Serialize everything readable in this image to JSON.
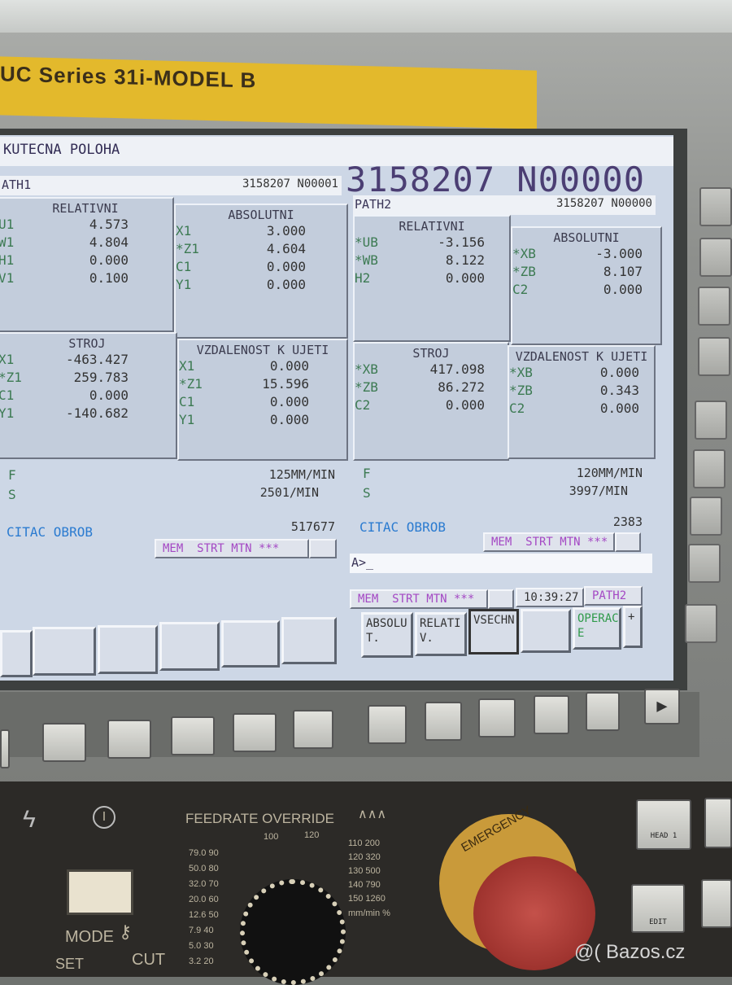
{
  "brand": "UC Series 31i-MODEL B",
  "screen": {
    "title": "KUTECNA POLOHA",
    "program_number": "3158207 N00000",
    "path1": {
      "label": "ATH1",
      "program": "3158207 N00001",
      "relativni": {
        "title": "RELATIVNI",
        "rows": [
          {
            "axis": "U1",
            "value": "4.573"
          },
          {
            "axis": "W1",
            "value": "4.804"
          },
          {
            "axis": "H1",
            "value": "0.000"
          },
          {
            "axis": "V1",
            "value": "0.100"
          }
        ]
      },
      "absolutni": {
        "title": "ABSOLUTNI",
        "rows": [
          {
            "axis": "X1",
            "value": "3.000"
          },
          {
            "axis": "*Z1",
            "value": "4.604"
          },
          {
            "axis": "C1",
            "value": "0.000"
          },
          {
            "axis": "Y1",
            "value": "0.000"
          }
        ]
      },
      "stroj": {
        "title": "STROJ",
        "rows": [
          {
            "axis": "X1",
            "value": "-463.427"
          },
          {
            "axis": "*Z1",
            "value": "259.783"
          },
          {
            "axis": "C1",
            "value": "0.000"
          },
          {
            "axis": "Y1",
            "value": "-140.682"
          }
        ]
      },
      "vzdalenost": {
        "title": "VZDALENOST K UJETI",
        "rows": [
          {
            "axis": "X1",
            "value": "0.000"
          },
          {
            "axis": "*Z1",
            "value": "15.596"
          },
          {
            "axis": "C1",
            "value": "0.000"
          },
          {
            "axis": "Y1",
            "value": "0.000"
          }
        ]
      },
      "f_label": "F",
      "f_value": "125MM/MIN",
      "s_label": "S",
      "s_value": "2501/MIN",
      "counter_label": "CITAC OBROB",
      "counter_value": "517677",
      "status": "MEM  STRT MTN ***"
    },
    "path2": {
      "label": "PATH2",
      "program": "3158207 N00000",
      "relativni": {
        "title": "RELATIVNI",
        "rows": [
          {
            "axis": "*UB",
            "value": "-3.156"
          },
          {
            "axis": "*WB",
            "value": "8.122"
          },
          {
            "axis": "H2",
            "value": "0.000"
          }
        ]
      },
      "absolutni": {
        "title": "ABSOLUTNI",
        "rows": [
          {
            "axis": "*XB",
            "value": "-3.000"
          },
          {
            "axis": "*ZB",
            "value": "8.107"
          },
          {
            "axis": "C2",
            "value": "0.000"
          }
        ]
      },
      "stroj": {
        "title": "STROJ",
        "rows": [
          {
            "axis": "*XB",
            "value": "417.098"
          },
          {
            "axis": "*ZB",
            "value": "86.272"
          },
          {
            "axis": "C2",
            "value": "0.000"
          }
        ]
      },
      "vzdalenost": {
        "title": "VZDALENOST K UJETI",
        "rows": [
          {
            "axis": "*XB",
            "value": "0.000"
          },
          {
            "axis": "*ZB",
            "value": "0.343"
          },
          {
            "axis": "C2",
            "value": "0.000"
          }
        ]
      },
      "f_label": "F",
      "f_value": "120MM/MIN",
      "s_label": "S",
      "s_value": "3997/MIN",
      "counter_label": "CITAC OBROB",
      "counter_value": "2383",
      "status": "MEM  STRT MTN ***"
    },
    "input_prompt": "A>_",
    "bottom_status": "MEM  STRT MTN ***",
    "clock": "10:39:27",
    "active_path": "PATH2",
    "softkeys": [
      "ABSOLU T.",
      "RELATI V.",
      "VSECHN",
      "",
      "OPERAC E",
      "+"
    ]
  },
  "panel": {
    "feedrate_label": "FEEDRATE OVERRIDE",
    "mode_label": "MODE",
    "set_label": "SET",
    "cut_label": "CUT",
    "emergency_label": "EMERGENCY",
    "head_button": "HEAD 1",
    "edit_button": "EDIT",
    "feed_scale_left": [
      "79.0 90",
      "50.0 80",
      "32.0 70",
      "20.0 60",
      "12.6 50",
      "7.9 40",
      "5.0 30",
      "3.2 20"
    ],
    "feed_scale_top": [
      "100",
      "120"
    ],
    "feed_scale_right": [
      "110 200",
      "120 320",
      "130 500",
      "140 790",
      "150 1260"
    ],
    "units": "mm/min %",
    "watermark": "@( Bazos.cz"
  }
}
